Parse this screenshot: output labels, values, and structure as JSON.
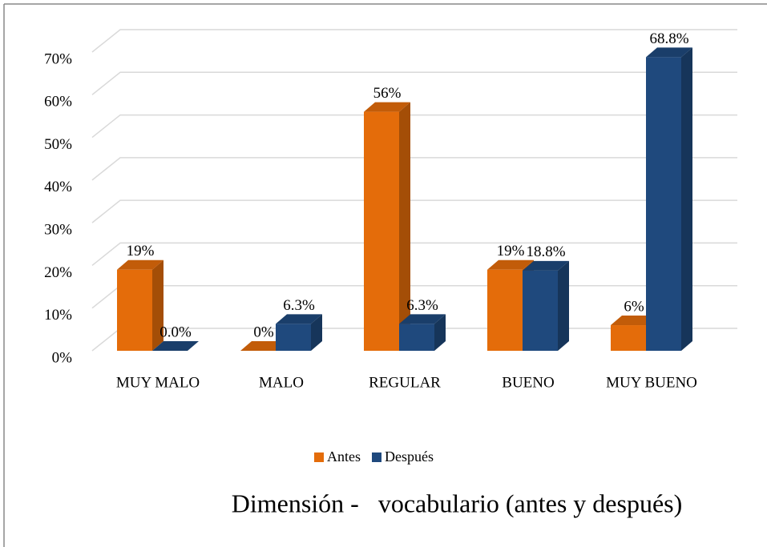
{
  "chart_data": {
    "type": "bar3d",
    "title": "Dimensión -   vocabulario (antes y después)",
    "categories": [
      "MUY MALO",
      "MALO",
      "REGULAR",
      "BUENO",
      "MUY BUENO"
    ],
    "series": [
      {
        "name": "Antes",
        "color": "#E46C0A",
        "values": [
          19,
          0,
          56,
          19,
          6
        ],
        "value_labels": [
          "19%",
          "0%",
          "56%",
          "19%",
          "6%"
        ]
      },
      {
        "name": "Después",
        "color": "#1F497D",
        "values": [
          0,
          6.3,
          6.3,
          18.8,
          68.8
        ],
        "value_labels": [
          "0.0%",
          "6.3%",
          "6.3%",
          "18.8%",
          "68.8%"
        ]
      }
    ],
    "ylim": [
      0,
      70
    ],
    "yticks": [
      {
        "value": 0,
        "label": "0%"
      },
      {
        "value": 10,
        "label": "10%"
      },
      {
        "value": 20,
        "label": "20%"
      },
      {
        "value": 30,
        "label": "30%"
      },
      {
        "value": 40,
        "label": "40%"
      },
      {
        "value": 50,
        "label": "50%"
      },
      {
        "value": 60,
        "label": "60%"
      },
      {
        "value": 70,
        "label": "70%"
      }
    ],
    "grid": true,
    "legend": "bottom"
  }
}
